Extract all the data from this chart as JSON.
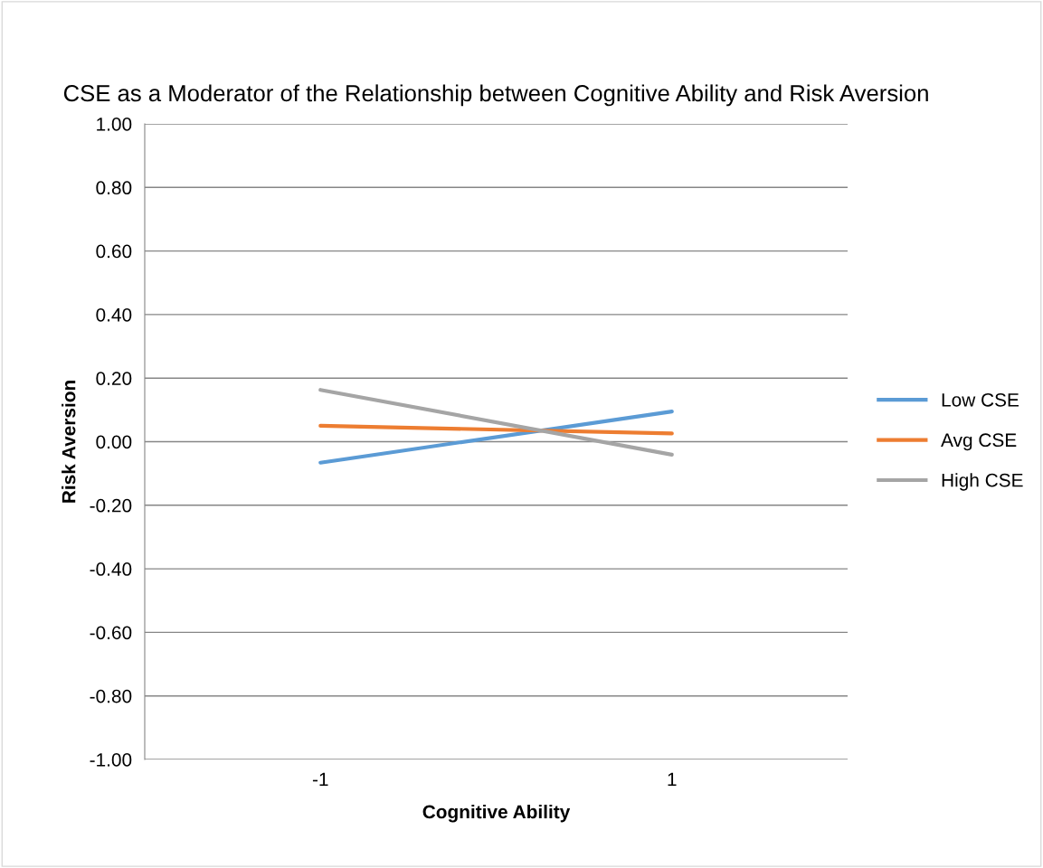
{
  "chart_data": {
    "type": "line",
    "title": "CSE as a Moderator of the Relationship between Cognitive Ability and Risk Aversion",
    "xlabel": "Cognitive Ability",
    "ylabel": "Risk Aversion",
    "categories": [
      "-1",
      "1"
    ],
    "series": [
      {
        "name": "Low CSE",
        "color": "#5b9bd5",
        "values": [
          -0.066,
          0.095
        ]
      },
      {
        "name": "Avg CSE",
        "color": "#ed7d31",
        "values": [
          0.05,
          0.026
        ]
      },
      {
        "name": "High CSE",
        "color": "#a5a5a5",
        "values": [
          0.163,
          -0.041
        ]
      }
    ],
    "ylim": [
      -1.0,
      1.0
    ],
    "yticks": [
      {
        "value": -1.0,
        "label": "-1.00"
      },
      {
        "value": -0.8,
        "label": "-0.80"
      },
      {
        "value": -0.6,
        "label": "-0.60"
      },
      {
        "value": -0.4,
        "label": "-0.40"
      },
      {
        "value": -0.2,
        "label": "-0.20"
      },
      {
        "value": 0.0,
        "label": "0.00"
      },
      {
        "value": 0.2,
        "label": "0.20"
      },
      {
        "value": 0.4,
        "label": "0.40"
      },
      {
        "value": 0.6,
        "label": "0.60"
      },
      {
        "value": 0.8,
        "label": "0.80"
      },
      {
        "value": 1.0,
        "label": "1.00"
      }
    ],
    "grid": "y",
    "legend": "right",
    "marker": "none",
    "line_style": "solid"
  }
}
